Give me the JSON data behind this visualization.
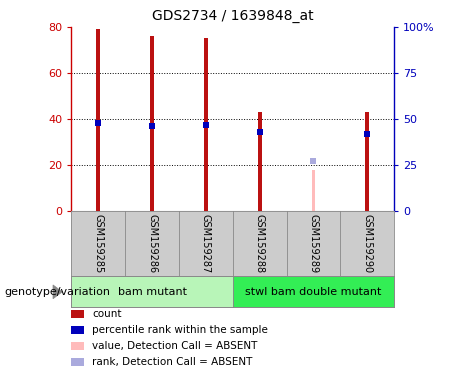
{
  "title": "GDS2734 / 1639848_at",
  "samples": [
    "GSM159285",
    "GSM159286",
    "GSM159287",
    "GSM159288",
    "GSM159289",
    "GSM159290"
  ],
  "count_values": [
    79,
    76,
    75,
    43,
    null,
    43
  ],
  "percentile_values": [
    48,
    46,
    47,
    43,
    null,
    42
  ],
  "absent_value": [
    null,
    null,
    null,
    null,
    18,
    null
  ],
  "absent_rank": [
    null,
    null,
    null,
    null,
    27,
    null
  ],
  "groups": [
    {
      "label": "bam mutant",
      "indices": [
        0,
        1,
        2
      ]
    },
    {
      "label": "stwl bam double mutant",
      "indices": [
        3,
        4,
        5
      ]
    }
  ],
  "group_colors": [
    "#b8f5b8",
    "#33ee55"
  ],
  "ylim_left": [
    0,
    80
  ],
  "ylim_right": [
    0,
    100
  ],
  "yticks_left": [
    0,
    20,
    40,
    60,
    80
  ],
  "yticks_right": [
    0,
    25,
    50,
    75,
    100
  ],
  "yticklabels_right": [
    "0",
    "25",
    "50",
    "75",
    "100%"
  ],
  "left_axis_color": "#cc0000",
  "right_axis_color": "#0000bb",
  "count_color": "#bb1111",
  "percentile_color": "#0000bb",
  "absent_value_color": "#ffbbbb",
  "absent_rank_color": "#aaaadd",
  "legend_items": [
    {
      "color": "#bb1111",
      "label": "count"
    },
    {
      "color": "#0000bb",
      "label": "percentile rank within the sample"
    },
    {
      "color": "#ffbbbb",
      "label": "value, Detection Call = ABSENT"
    },
    {
      "color": "#aaaadd",
      "label": "rank, Detection Call = ABSENT"
    }
  ],
  "xlabel_group": "genotype/variation",
  "bg_color": "#ffffff",
  "sample_box_color": "#cccccc",
  "bar_width": 0.07
}
